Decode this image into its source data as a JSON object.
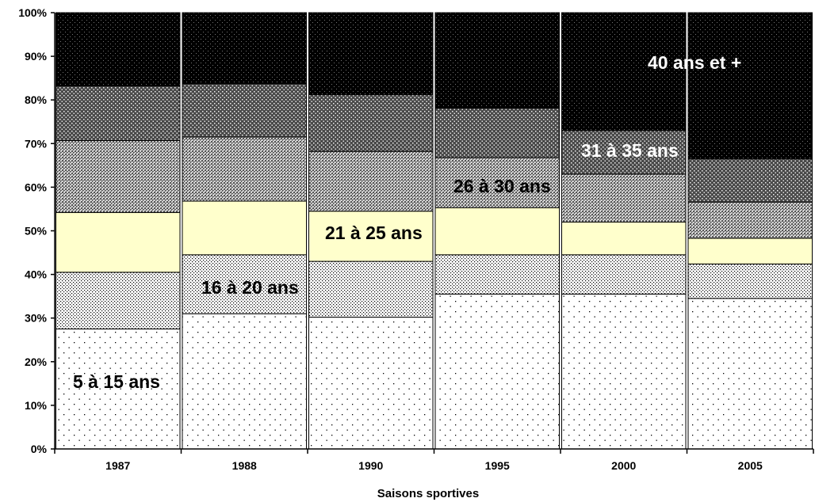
{
  "chart_data": {
    "type": "bar",
    "stacked": "percent",
    "title": "",
    "xlabel": "Saisons sportives",
    "ylabel": "",
    "ylim": [
      0,
      100
    ],
    "yticks": [
      "0%",
      "10%",
      "20%",
      "30%",
      "40%",
      "50%",
      "60%",
      "70%",
      "80%",
      "90%",
      "100%"
    ],
    "categories": [
      "1987",
      "1988",
      "1990",
      "1995",
      "2000",
      "2005"
    ],
    "series": [
      {
        "name": "5 à 15 ans",
        "values": [
          27.5,
          31.0,
          30.2,
          35.5,
          35.5,
          34.5
        ],
        "pattern": "dots-sparse",
        "label_color": "#000000"
      },
      {
        "name": "16 à 20 ans",
        "values": [
          13.0,
          13.5,
          12.8,
          9.0,
          9.0,
          7.9
        ],
        "pattern": "dots-dense",
        "label_color": "#000000"
      },
      {
        "name": "21 à 25 ans",
        "values": [
          13.7,
          12.3,
          11.5,
          10.8,
          7.5,
          5.9
        ],
        "pattern": "solid-cream",
        "label_color": "#000000"
      },
      {
        "name": "26 à 30 ans",
        "values": [
          16.5,
          14.7,
          13.7,
          11.5,
          11.0,
          8.3
        ],
        "pattern": "crosshatch-medium",
        "label_color": "#000000"
      },
      {
        "name": "31 à 35 ans",
        "values": [
          12.5,
          12.2,
          13.0,
          11.3,
          10.0,
          9.9
        ],
        "pattern": "crosshatch-dark",
        "label_color": "#ffffff"
      },
      {
        "name": "40 ans et +",
        "values": [
          16.8,
          16.3,
          18.8,
          21.9,
          27.0,
          33.5
        ],
        "pattern": "dots-black",
        "label_color": "#ffffff"
      }
    ],
    "grid": false,
    "legend": "inline-labels"
  },
  "colors": {
    "cream": "#ffffcc",
    "black": "#000000",
    "white": "#ffffff"
  }
}
